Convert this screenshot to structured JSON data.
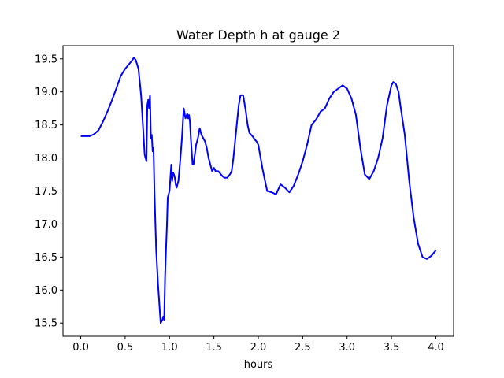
{
  "chart_data": {
    "type": "line",
    "title": "Water Depth h at gauge 2",
    "xlabel": "hours",
    "ylabel": "",
    "xlim": [
      -0.2,
      4.2
    ],
    "ylim": [
      15.3,
      19.7
    ],
    "xticks": [
      0.0,
      0.5,
      1.0,
      1.5,
      2.0,
      2.5,
      3.0,
      3.5,
      4.0
    ],
    "xtick_labels": [
      "0.0",
      "0.5",
      "1.0",
      "1.5",
      "2.0",
      "2.5",
      "3.0",
      "3.5",
      "4.0"
    ],
    "yticks": [
      15.5,
      16.0,
      16.5,
      17.0,
      17.5,
      18.0,
      18.5,
      19.0,
      19.5
    ],
    "ytick_labels": [
      "15.5",
      "16.0",
      "16.5",
      "17.0",
      "17.5",
      "18.0",
      "18.5",
      "19.0",
      "19.5"
    ],
    "grid": false,
    "series": [
      {
        "color": "#0000ff",
        "x": [
          0.0,
          0.05,
          0.1,
          0.15,
          0.2,
          0.25,
          0.3,
          0.35,
          0.4,
          0.45,
          0.5,
          0.55,
          0.58,
          0.6,
          0.62,
          0.65,
          0.68,
          0.7,
          0.72,
          0.74,
          0.75,
          0.76,
          0.77,
          0.78,
          0.79,
          0.8,
          0.81,
          0.82,
          0.83,
          0.85,
          0.87,
          0.9,
          0.92,
          0.93,
          0.94,
          0.95,
          0.96,
          0.97,
          0.98,
          1.0,
          1.02,
          1.03,
          1.04,
          1.05,
          1.06,
          1.07,
          1.08,
          1.1,
          1.12,
          1.14,
          1.16,
          1.18,
          1.2,
          1.21,
          1.22,
          1.23,
          1.24,
          1.25,
          1.26,
          1.27,
          1.28,
          1.3,
          1.32,
          1.34,
          1.36,
          1.38,
          1.4,
          1.42,
          1.44,
          1.46,
          1.48,
          1.5,
          1.52,
          1.55,
          1.58,
          1.6,
          1.62,
          1.65,
          1.68,
          1.7,
          1.72,
          1.75,
          1.78,
          1.8,
          1.83,
          1.86,
          1.88,
          1.9,
          1.92,
          1.94,
          1.96,
          1.98,
          2.0,
          2.05,
          2.1,
          2.15,
          2.2,
          2.25,
          2.3,
          2.35,
          2.4,
          2.45,
          2.5,
          2.55,
          2.6,
          2.65,
          2.68,
          2.7,
          2.75,
          2.8,
          2.85,
          2.9,
          2.95,
          3.0,
          3.05,
          3.1,
          3.15,
          3.2,
          3.25,
          3.3,
          3.35,
          3.4,
          3.45,
          3.5,
          3.52,
          3.55,
          3.58,
          3.6,
          3.65,
          3.7,
          3.75,
          3.8,
          3.85,
          3.9,
          3.95,
          4.0
        ],
        "y": [
          18.33,
          18.33,
          18.33,
          18.36,
          18.42,
          18.55,
          18.7,
          18.87,
          19.05,
          19.24,
          19.35,
          19.43,
          19.48,
          19.52,
          19.48,
          19.35,
          18.95,
          18.5,
          18.05,
          17.95,
          18.8,
          18.88,
          18.75,
          18.95,
          18.3,
          18.35,
          18.1,
          18.15,
          17.5,
          16.6,
          16.1,
          15.5,
          15.55,
          15.6,
          15.55,
          16.2,
          16.6,
          16.95,
          17.4,
          17.5,
          17.9,
          17.65,
          17.78,
          17.75,
          17.7,
          17.6,
          17.55,
          17.65,
          17.95,
          18.3,
          18.75,
          18.6,
          18.67,
          18.6,
          18.65,
          18.55,
          18.3,
          18.1,
          17.9,
          17.9,
          18.0,
          18.2,
          18.3,
          18.45,
          18.35,
          18.3,
          18.25,
          18.15,
          18.0,
          17.9,
          17.8,
          17.85,
          17.8,
          17.8,
          17.75,
          17.72,
          17.7,
          17.7,
          17.75,
          17.8,
          18.0,
          18.4,
          18.8,
          18.95,
          18.95,
          18.7,
          18.5,
          18.38,
          18.35,
          18.32,
          18.28,
          18.25,
          18.2,
          17.82,
          17.5,
          17.48,
          17.45,
          17.6,
          17.55,
          17.48,
          17.58,
          17.75,
          17.95,
          18.2,
          18.5,
          18.58,
          18.65,
          18.7,
          18.75,
          18.9,
          19.0,
          19.05,
          19.1,
          19.05,
          18.9,
          18.65,
          18.15,
          17.75,
          17.68,
          17.8,
          18.0,
          18.3,
          18.8,
          19.1,
          19.15,
          19.12,
          19.0,
          18.8,
          18.35,
          17.65,
          17.1,
          16.7,
          16.5,
          16.47,
          16.52,
          16.6
        ]
      }
    ]
  }
}
